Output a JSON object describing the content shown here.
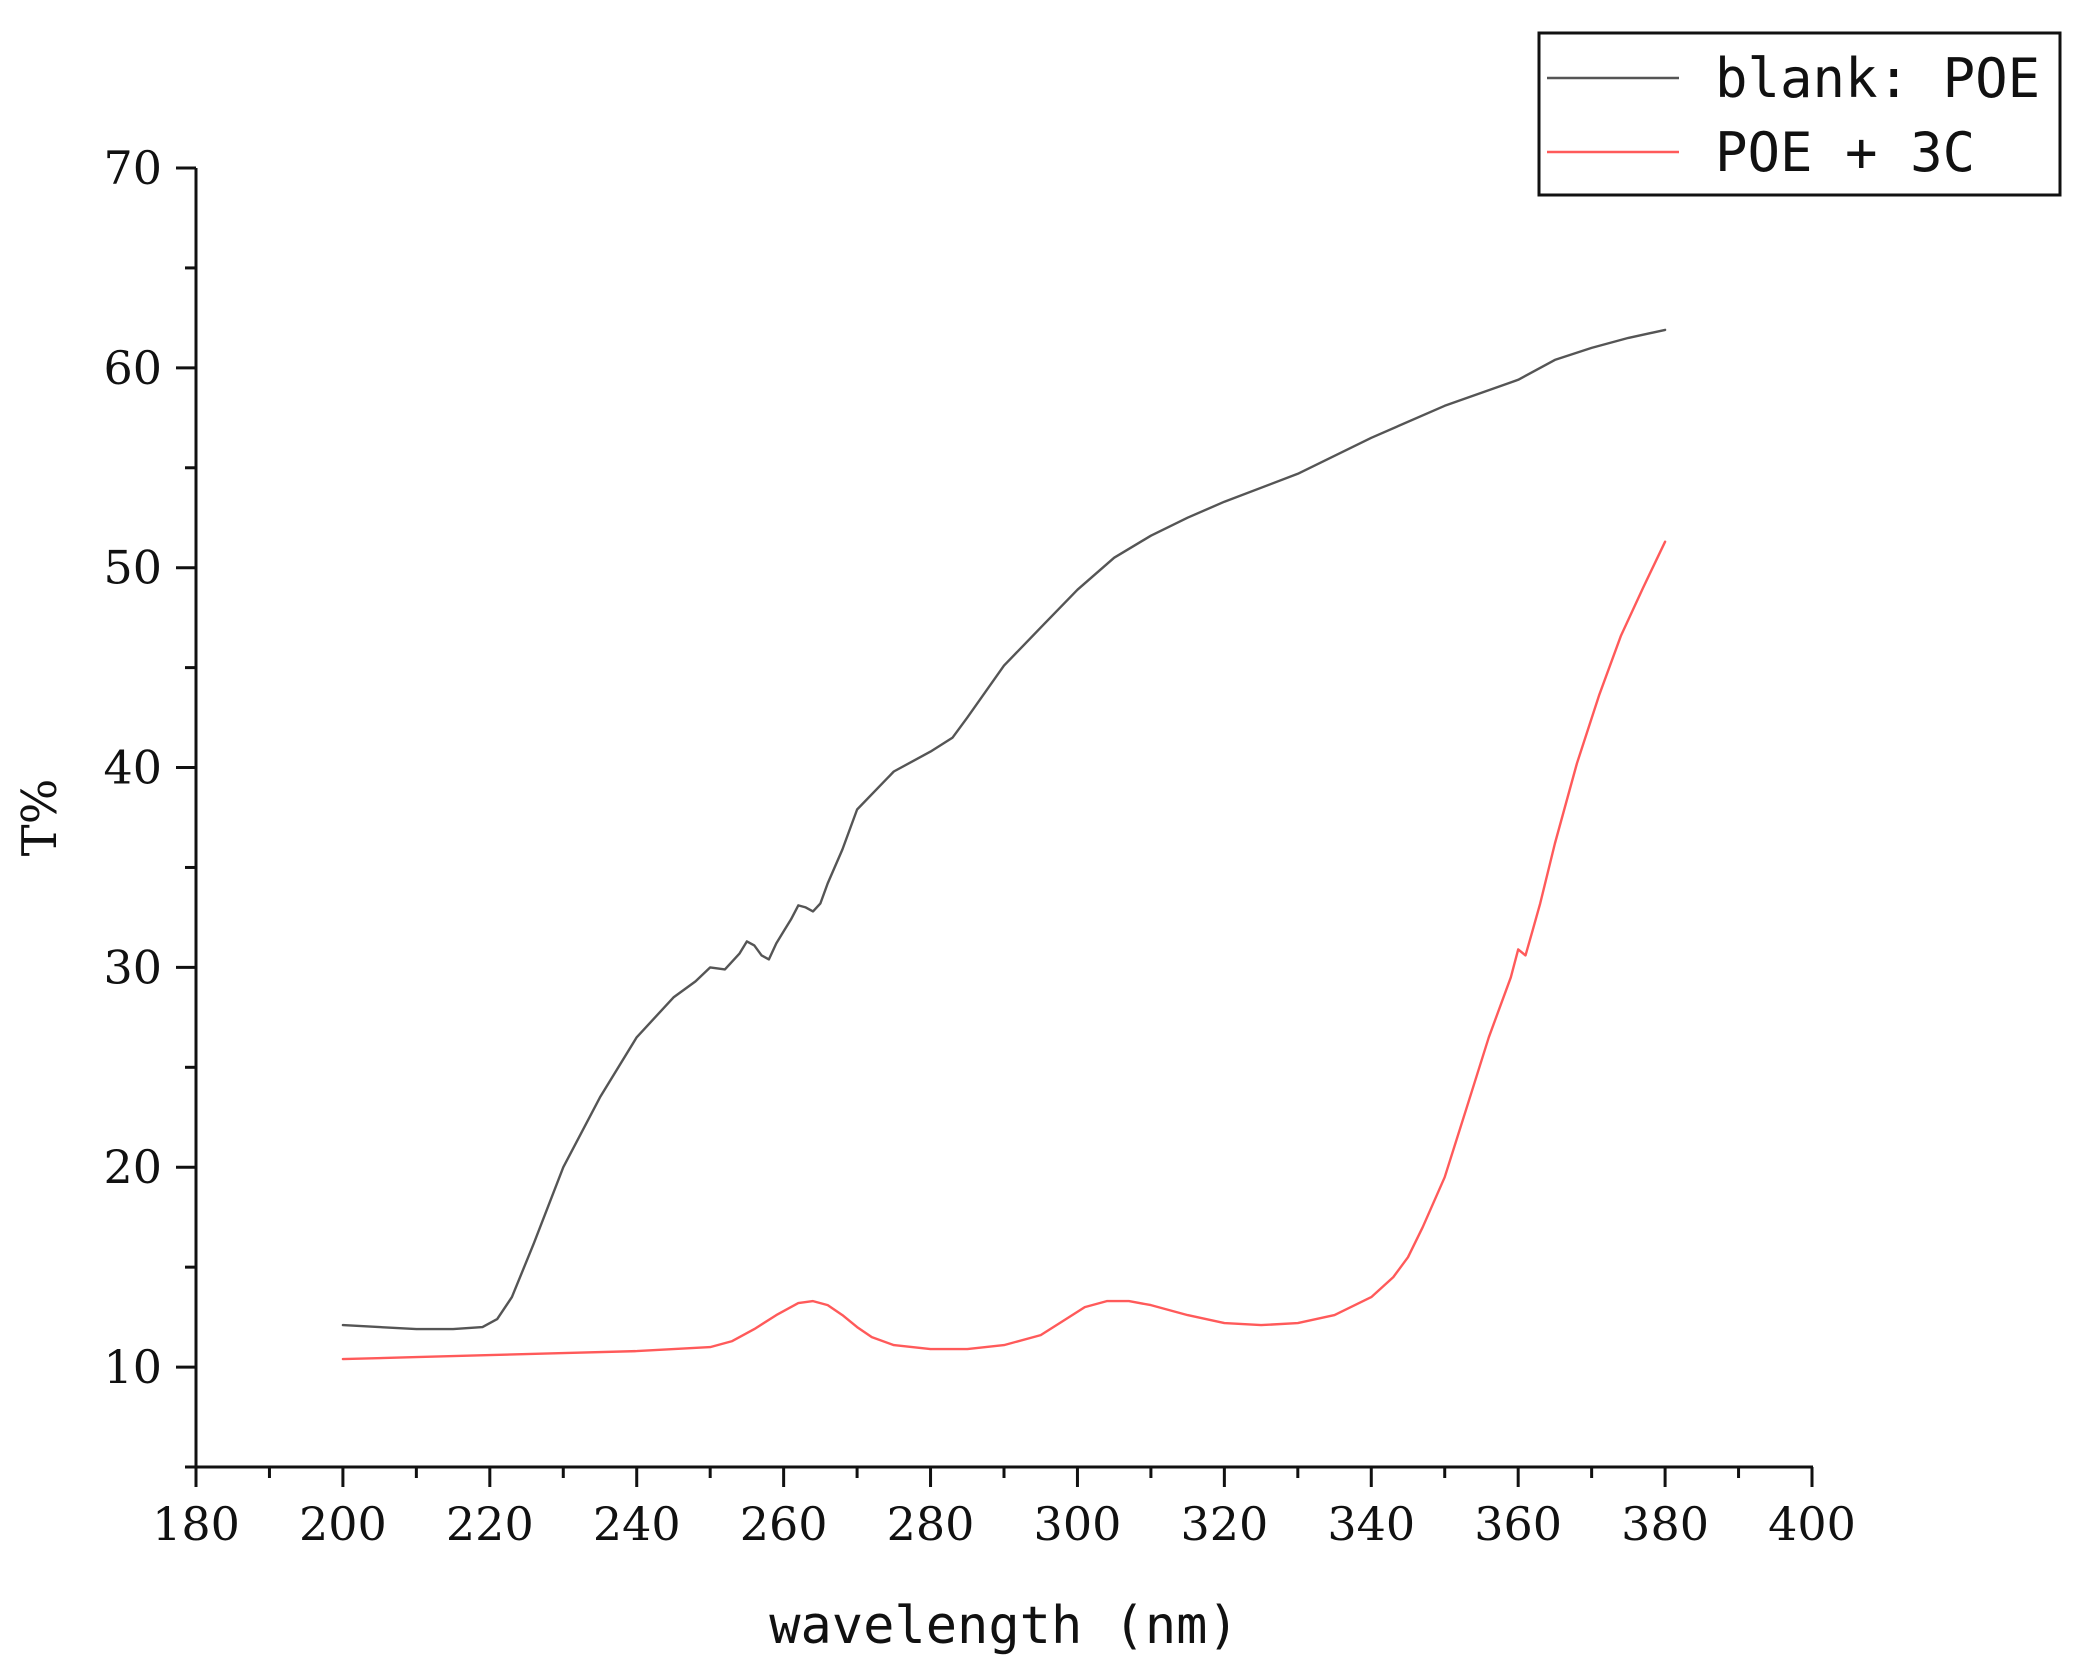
{
  "chart_data": {
    "type": "line",
    "title": "",
    "xlabel": "wavelength (nm)",
    "ylabel": "T%",
    "xlim": [
      180,
      400
    ],
    "ylim": [
      5,
      70
    ],
    "x_ticks": [
      180,
      200,
      220,
      240,
      260,
      280,
      300,
      320,
      340,
      360,
      380,
      400
    ],
    "y_ticks": [
      10,
      20,
      30,
      40,
      50,
      60,
      70
    ],
    "grid": false,
    "legend_position": "top-right",
    "series": [
      {
        "name": "blank: POE",
        "color": "#555555",
        "x": [
          200,
          205,
          210,
          215,
          219,
          221,
          223,
          226,
          230,
          235,
          240,
          245,
          248,
          250,
          252,
          254,
          255,
          256,
          257,
          258,
          259,
          260,
          261,
          262,
          263,
          264,
          265,
          266,
          268,
          270,
          275,
          280,
          283,
          285,
          290,
          295,
          300,
          305,
          310,
          315,
          320,
          330,
          340,
          350,
          360,
          365,
          370,
          375,
          380
        ],
        "y": [
          12.1,
          12.0,
          11.9,
          11.9,
          12.0,
          12.4,
          13.5,
          16.2,
          20.0,
          23.5,
          26.5,
          28.5,
          29.3,
          30.0,
          29.9,
          30.7,
          31.3,
          31.1,
          30.6,
          30.4,
          31.2,
          31.8,
          32.4,
          33.1,
          33.0,
          32.8,
          33.2,
          34.2,
          35.9,
          37.9,
          39.8,
          40.8,
          41.5,
          42.5,
          45.1,
          47.0,
          48.9,
          50.5,
          51.6,
          52.5,
          53.3,
          54.7,
          56.5,
          58.1,
          59.4,
          60.4,
          61.0,
          61.5,
          61.9
        ]
      },
      {
        "name": "POE + 3C",
        "color": "#ff5a5a",
        "x": [
          200,
          210,
          220,
          230,
          240,
          245,
          250,
          253,
          256,
          259,
          262,
          264,
          266,
          268,
          270,
          272,
          275,
          280,
          285,
          290,
          295,
          298,
          301,
          304,
          307,
          310,
          315,
          320,
          325,
          330,
          335,
          340,
          343,
          345,
          347,
          350,
          353,
          356,
          359,
          360,
          361,
          362,
          363,
          365,
          368,
          371,
          374,
          377,
          380
        ],
        "y": [
          10.4,
          10.5,
          10.6,
          10.7,
          10.8,
          10.9,
          11.0,
          11.3,
          11.9,
          12.6,
          13.2,
          13.3,
          13.1,
          12.6,
          12.0,
          11.5,
          11.1,
          10.9,
          10.9,
          11.1,
          11.6,
          12.3,
          13.0,
          13.3,
          13.3,
          13.1,
          12.6,
          12.2,
          12.1,
          12.2,
          12.6,
          13.5,
          14.5,
          15.5,
          17.0,
          19.5,
          23.0,
          26.5,
          29.5,
          30.9,
          30.6,
          31.9,
          33.2,
          36.2,
          40.2,
          43.6,
          46.6,
          49.0,
          51.3
        ]
      }
    ]
  }
}
